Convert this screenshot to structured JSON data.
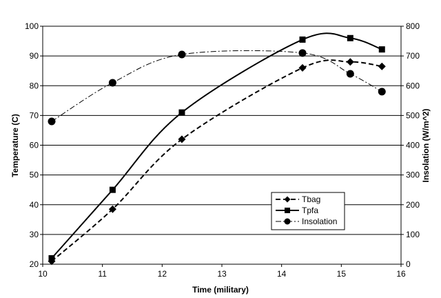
{
  "chart_data": {
    "type": "line",
    "title": "",
    "xlabel": "Time (military)",
    "ylabel_left": "Temperature (C)",
    "ylabel_right": "Insolation (W/m^2)",
    "xlim": [
      10,
      16
    ],
    "ylim_left": [
      20,
      100
    ],
    "ylim_right": [
      0,
      800
    ],
    "x_ticks": [
      "10",
      "11",
      "12",
      "13",
      "14",
      "15",
      "16"
    ],
    "y_left_ticks": [
      "20",
      "30",
      "40",
      "50",
      "60",
      "70",
      "80",
      "90",
      "100"
    ],
    "y_right_ticks": [
      "0",
      "100",
      "200",
      "300",
      "400",
      "500",
      "600",
      "700",
      "800"
    ],
    "grid": "horizontal",
    "legend_position": "lower-right",
    "series": [
      {
        "name": "Tbag",
        "axis": "left",
        "line_style": "dashed",
        "marker": "diamond",
        "x": [
          10.15,
          11.17,
          12.33,
          14.35,
          15.15,
          15.68
        ],
        "y": [
          21,
          38.5,
          62,
          86,
          88,
          86.5
        ]
      },
      {
        "name": "Tpfa",
        "axis": "left",
        "line_style": "solid",
        "marker": "square",
        "x": [
          10.15,
          11.17,
          12.33,
          14.35,
          15.15,
          15.68
        ],
        "y": [
          22,
          45,
          71,
          95.5,
          96,
          92.2
        ]
      },
      {
        "name": "Insolation",
        "axis": "right",
        "line_style": "dashdot",
        "marker": "circle",
        "x": [
          10.15,
          11.17,
          12.33,
          14.35,
          15.15,
          15.68
        ],
        "y": [
          480,
          610,
          705,
          710,
          640,
          580
        ]
      }
    ]
  }
}
